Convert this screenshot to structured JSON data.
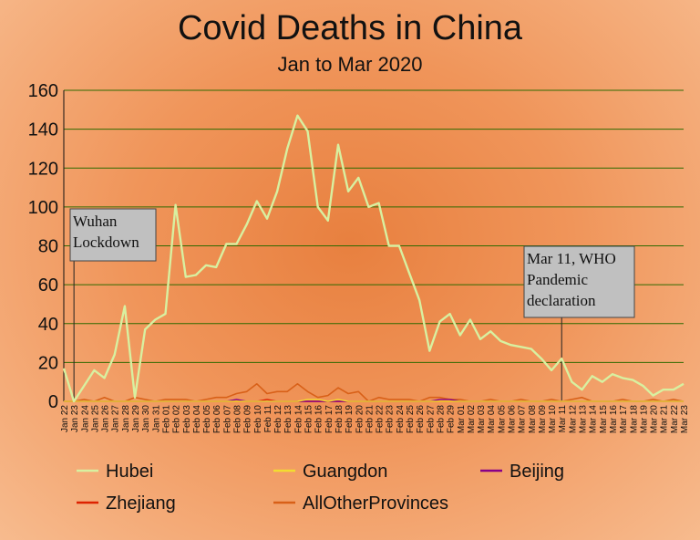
{
  "chart_data": {
    "type": "line",
    "title": "Covid Deaths in China",
    "subtitle": "Jan to Mar 2020",
    "ylim": [
      0,
      160
    ],
    "yticks": [
      0,
      20,
      40,
      60,
      80,
      100,
      120,
      140,
      160
    ],
    "grid": true,
    "legend_placement": "bottom",
    "x": [
      "Jan 22",
      "Jan 23",
      "Jan 24",
      "Jan 25",
      "Jan 26",
      "Jan 27",
      "Jan 28",
      "Jan 29",
      "Jan 30",
      "Jan 31",
      "Feb 01",
      "Feb 02",
      "Feb 03",
      "Feb 04",
      "Feb 05",
      "Feb 06",
      "Feb 07",
      "Feb 08",
      "Feb 09",
      "Feb 10",
      "Feb 11",
      "Feb 12",
      "Feb 13",
      "Feb 14",
      "Feb 15",
      "Feb 16",
      "Feb 17",
      "Feb 18",
      "Feb 19",
      "Feb 20",
      "Feb 21",
      "Feb 22",
      "Feb 23",
      "Feb 24",
      "Feb 25",
      "Feb 26",
      "Feb 27",
      "Feb 28",
      "Feb 29",
      "Mar 01",
      "Mar 02",
      "Mar 03",
      "Mar 04",
      "Mar 05",
      "Mar 06",
      "Mar 07",
      "Mar 08",
      "Mar 09",
      "Mar 10",
      "Mar 11",
      "Mar 12",
      "Mar 13",
      "Mar 14",
      "Mar 15",
      "Mar 16",
      "Mar 17",
      "Mar 18",
      "Mar 19",
      "Mar 20",
      "Mar 21",
      "Mar 22",
      "Mar 23"
    ],
    "xtick_labels": [
      "Jan 22",
      "Jan 23",
      "Jan 24",
      "Jan 25",
      "Jan 26",
      "Jan 27",
      "Jan 28",
      "Jan 29",
      "Jan 30",
      "Jan 31",
      "Feb 01",
      "Feb 02",
      "Feb 03",
      "Feb 04",
      "Feb 05",
      "Feb 06",
      "Feb 07",
      "Feb 08",
      "Feb 09",
      "Feb 10",
      "Feb 11",
      "Feb 12",
      "Feb 13",
      "Feb 14",
      "Feb 15",
      "Feb 16",
      "Feb 17",
      "Feb 18",
      "Feb 19",
      "Feb 20",
      "Feb 21",
      "Feb 22",
      "Feb 23",
      "Feb 24",
      "Feb 25",
      "Feb 26",
      "Feb 27",
      "Feb 28",
      "Feb 29",
      "Mar 01",
      "Mar 02",
      "Mar 03",
      "Mar 04",
      "Mar 05",
      "Mar 06",
      "Mar 07",
      "Mar 08",
      "Mar 09",
      "Mar 10",
      "Mar 11",
      "Mar 12",
      "Mar 13",
      "Mar 14",
      "Mar 15",
      "Mar 16",
      "Mar 17",
      "Mar 18",
      "Mar 19",
      "Mar 20",
      "Mar 21",
      "Mar 22",
      "Mar 23"
    ],
    "series": [
      {
        "name": "Hubei",
        "color": "#d8f0a0",
        "width": 2.4,
        "values": [
          17,
          0,
          8,
          16,
          12,
          24,
          49,
          2,
          37,
          42,
          45,
          101,
          64,
          65,
          70,
          69,
          81,
          81,
          91,
          103,
          94,
          108,
          130,
          147,
          139,
          100,
          93,
          132,
          108,
          115,
          100,
          102,
          80,
          80,
          66,
          52,
          26,
          41,
          45,
          34,
          42,
          32,
          36,
          31,
          29,
          28,
          27,
          22,
          16,
          22,
          10,
          6,
          13,
          10,
          14,
          12,
          11,
          8,
          3,
          6,
          6,
          9
        ]
      },
      {
        "name": "Guangdon",
        "color": "#f2dc30",
        "width": 1.4,
        "values": [
          0,
          0,
          0,
          0,
          0,
          0,
          0,
          0,
          0,
          0,
          0,
          0,
          0,
          0,
          0,
          0,
          0,
          0,
          0,
          0,
          0,
          0,
          0,
          0,
          1,
          1,
          0,
          1,
          0,
          0,
          0,
          0,
          0,
          0,
          0,
          0,
          0,
          0,
          0,
          0,
          0,
          0,
          0,
          0,
          0,
          0,
          0,
          0,
          0,
          0,
          0,
          0,
          0,
          0,
          0,
          0,
          0,
          0,
          0,
          0,
          0,
          0
        ]
      },
      {
        "name": "Beijing",
        "color": "#880088",
        "width": 1.4,
        "values": [
          0,
          0,
          0,
          0,
          0,
          0,
          0,
          0,
          0,
          0,
          0,
          0,
          0,
          0,
          0,
          0,
          0,
          1,
          0,
          0,
          0,
          0,
          0,
          0,
          0,
          0,
          0,
          0,
          0,
          0,
          0,
          0,
          0,
          0,
          0,
          0,
          0,
          1,
          1,
          0,
          0,
          0,
          0,
          0,
          0,
          0,
          0,
          0,
          0,
          0,
          0,
          0,
          0,
          0,
          0,
          0,
          0,
          0,
          0,
          0,
          0,
          0
        ]
      },
      {
        "name": "Zhejiang",
        "color": "#dd2200",
        "width": 1.4,
        "values": [
          0,
          0,
          0,
          0,
          0,
          0,
          0,
          0,
          0,
          0,
          0,
          0,
          0,
          0,
          0,
          0,
          0,
          0,
          0,
          0,
          1,
          0,
          0,
          0,
          0,
          0,
          0,
          0,
          0,
          0,
          0,
          0,
          0,
          0,
          0,
          0,
          0,
          0,
          0,
          0,
          0,
          0,
          0,
          0,
          0,
          0,
          0,
          0,
          0,
          0,
          0,
          0,
          0,
          0,
          0,
          0,
          0,
          0,
          0,
          0,
          0,
          0
        ]
      },
      {
        "name": "AllOtherProvinces",
        "color": "#d86018",
        "width": 1.6,
        "values": [
          0,
          0,
          1,
          0,
          2,
          0,
          0,
          2,
          1,
          0,
          1,
          1,
          1,
          0,
          1,
          2,
          2,
          4,
          5,
          9,
          4,
          5,
          5,
          9,
          5,
          2,
          3,
          7,
          4,
          5,
          0,
          2,
          1,
          1,
          1,
          0,
          2,
          2,
          1,
          1,
          0,
          0,
          1,
          0,
          0,
          1,
          0,
          0,
          1,
          0,
          1,
          2,
          0,
          0,
          0,
          1,
          0,
          0,
          1,
          0,
          1,
          0
        ]
      }
    ],
    "annotations": [
      {
        "id": "wuhan",
        "x": "Jan 23",
        "lines": [
          "Wuhan",
          "Lockdown"
        ]
      },
      {
        "id": "who",
        "x": "Mar 11",
        "lines": [
          "Mar 11, WHO",
          "Pandemic",
          "declaration"
        ]
      }
    ]
  }
}
